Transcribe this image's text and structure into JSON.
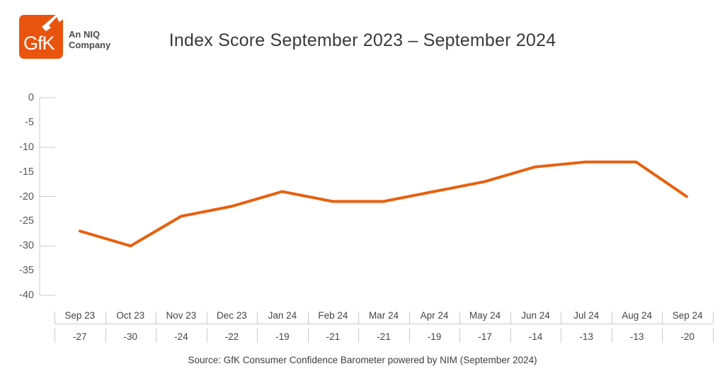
{
  "header": {
    "logo_text": "GfK",
    "tagline": "An NIQ\nCompany",
    "brand_orange": "#e8540e"
  },
  "chart_data": {
    "type": "line",
    "title": "Index Score September 2023 – September 2024",
    "categories": [
      "Sep 23",
      "Oct 23",
      "Nov 23",
      "Dec 23",
      "Jan 24",
      "Feb 24",
      "Mar 24",
      "Apr 24",
      "May 24",
      "Jun 24",
      "Jul 24",
      "Aug 24",
      "Sep 24"
    ],
    "values": [
      -27,
      -30,
      -24,
      -22,
      -19,
      -21,
      -21,
      -19,
      -17,
      -14,
      -13,
      -13,
      -20
    ],
    "xlabel": "",
    "ylabel": "",
    "ylim": [
      -40,
      0
    ],
    "ytick_labels": [
      0,
      -5,
      -10,
      -15,
      -20,
      -25,
      -30,
      -35,
      -40
    ],
    "ytick_lines": [
      0,
      -10,
      -20,
      -30,
      -40
    ],
    "grid": false,
    "legend": "none",
    "line_color": "#e8600e",
    "axis_color": "#cbcbcb"
  },
  "footer": {
    "source": "Source: GfK Consumer Confidence Barometer powered by NIM (September 2024)"
  }
}
